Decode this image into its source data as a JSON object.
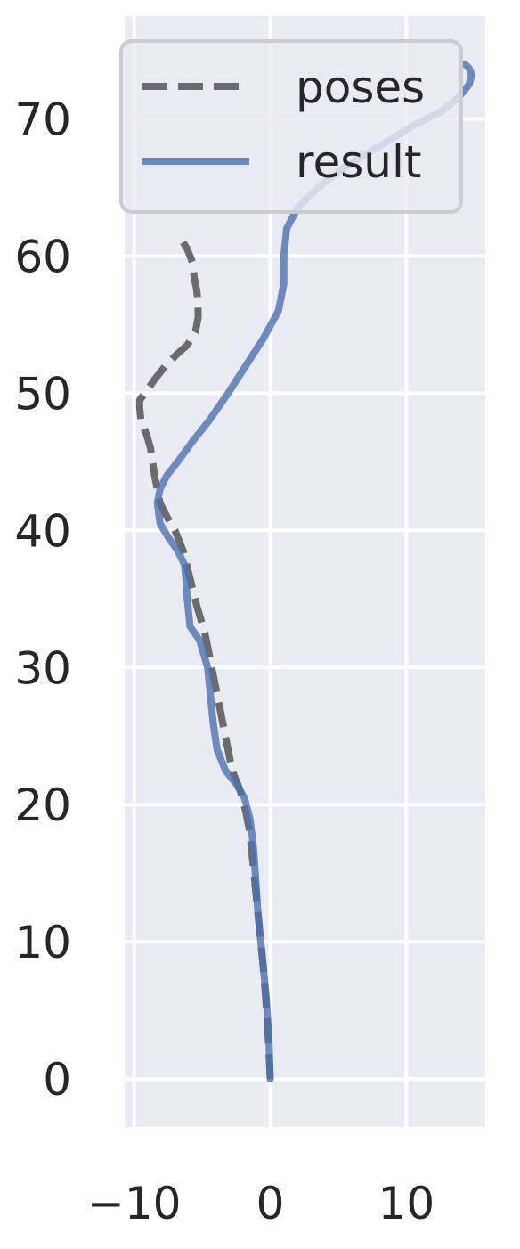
{
  "chart_data": {
    "type": "line",
    "title": "",
    "xlabel": "",
    "ylabel": "",
    "xlim": [
      -10.7,
      15.8
    ],
    "ylim": [
      -3.5,
      77.5
    ],
    "xticks": [
      -10,
      0,
      10
    ],
    "xtick_labels": [
      "−10",
      "0",
      "10"
    ],
    "yticks": [
      0,
      10,
      20,
      30,
      40,
      50,
      60,
      70
    ],
    "ytick_labels": [
      "0",
      "10",
      "20",
      "30",
      "40",
      "50",
      "60",
      "70"
    ],
    "grid": true,
    "legend_position": "top-right",
    "series": [
      {
        "name": "poses",
        "style": "dashed",
        "color": "#6b6b6b",
        "x": [
          0,
          -0.2,
          -0.5,
          -0.9,
          -1.2,
          -1.5,
          -1.8,
          -2.2,
          -2.8,
          -3.3,
          -3.8,
          -4.3,
          -4.8,
          -5.4,
          -5.9,
          -6.4,
          -7.0,
          -7.6,
          -8.1,
          -8.5,
          -8.8,
          -9.1,
          -9.5,
          -9.6,
          -9.6,
          -9.2,
          -8.5,
          -7.7,
          -6.9,
          -6.1,
          -5.5,
          -5.3,
          -5.3,
          -5.4,
          -5.6,
          -5.7,
          -5.9,
          -6.1,
          -6.4
        ],
        "y": [
          0,
          4,
          8,
          12,
          15,
          18,
          19.5,
          21,
          22.5,
          25,
          27.5,
          30,
          32.5,
          34.5,
          36.5,
          38.5,
          40,
          41,
          42,
          44,
          46,
          47,
          48,
          49,
          49.5,
          50,
          51,
          52,
          52.8,
          53.5,
          54.5,
          55.5,
          56.5,
          57.5,
          58.5,
          59.5,
          60,
          60.5,
          61
        ]
      },
      {
        "name": "result",
        "style": "solid",
        "color": "#4c72b0",
        "x": [
          0,
          -0.1,
          -0.3,
          -0.6,
          -0.9,
          -1.1,
          -1.2,
          -1.3,
          -1.5,
          -1.9,
          -2.5,
          -3.3,
          -3.9,
          -4.2,
          -4.4,
          -4.6,
          -5.2,
          -5.9,
          -6.1,
          -6.2,
          -6.3,
          -6.8,
          -7.5,
          -8.1,
          -8.3,
          -8.1,
          -7.6,
          -6.8,
          -5.7,
          -4.5,
          -3.1,
          -1.8,
          -0.5,
          0.6,
          1.0,
          1.0,
          1.2,
          2.0,
          3.5,
          5.5,
          8.0,
          10.5,
          12.5,
          13.8,
          14.6,
          14.8,
          14.6,
          14.3
        ],
        "y": [
          0,
          3,
          6,
          9,
          12,
          15,
          16.5,
          17.5,
          19,
          20.5,
          21.5,
          22.5,
          24,
          26,
          28,
          30,
          32,
          33,
          35,
          36.5,
          37.5,
          38.5,
          39.5,
          40.5,
          42,
          43,
          44,
          45,
          46.5,
          48,
          50,
          52,
          54,
          56,
          58,
          60,
          62,
          63.5,
          65,
          66.5,
          68,
          69.5,
          70.5,
          71.5,
          72.5,
          73.2,
          73.7,
          74
        ]
      }
    ]
  }
}
